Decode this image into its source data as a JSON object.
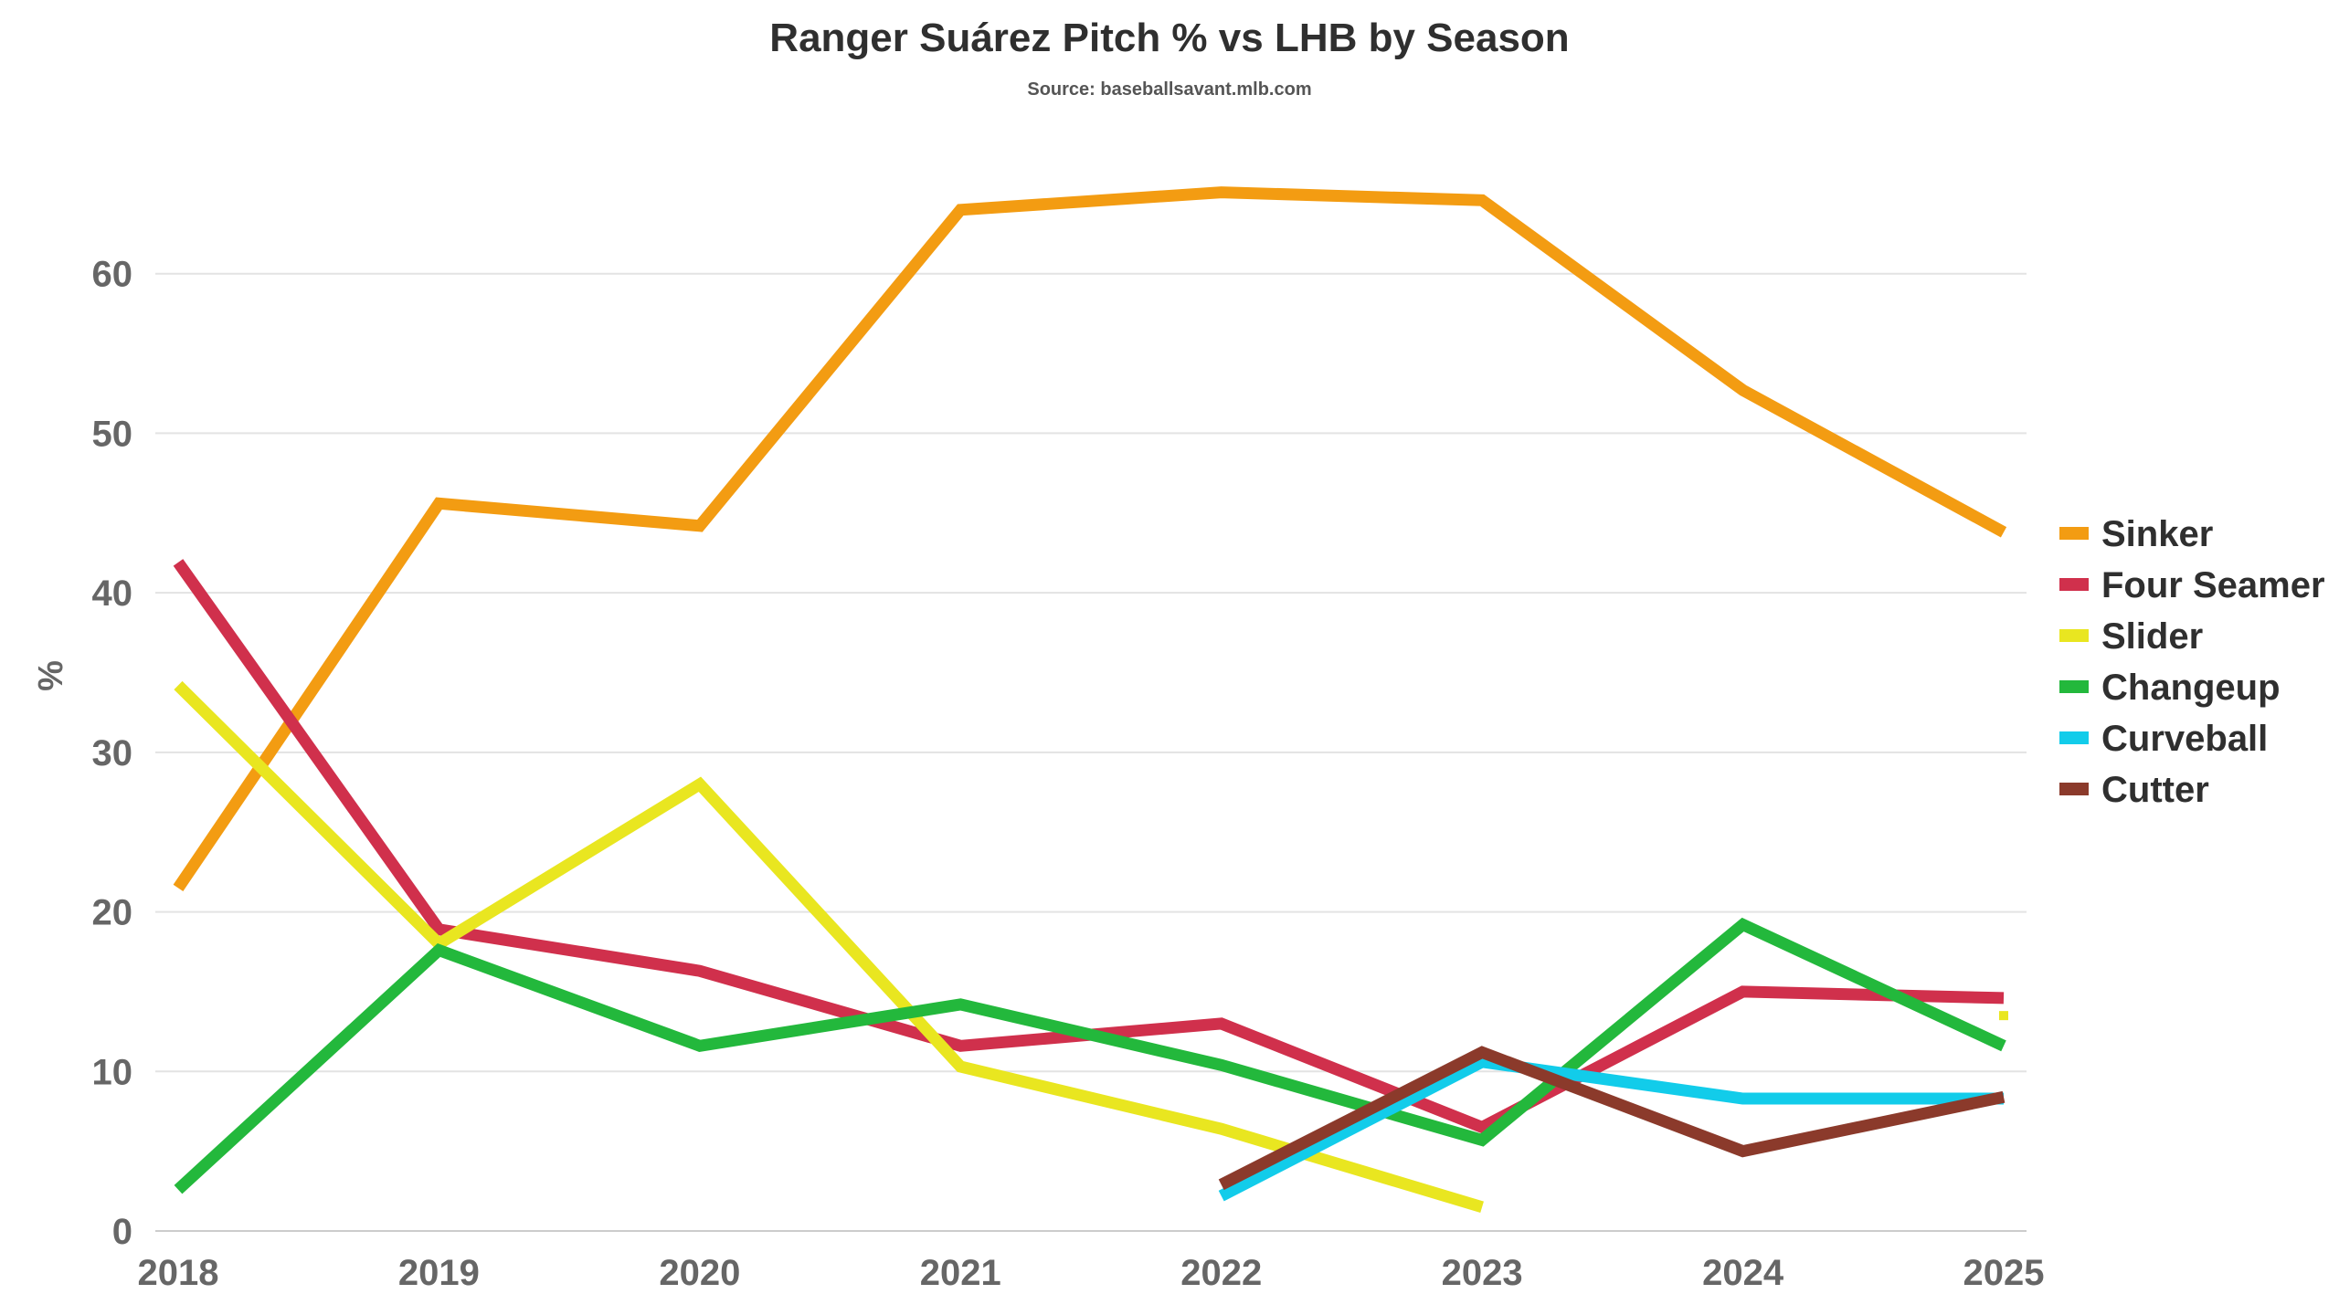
{
  "chart_data": {
    "type": "line",
    "title": "Ranger Suárez Pitch % vs LHB by Season",
    "subtitle": "Source: baseballsavant.mlb.com",
    "xlabel": "",
    "ylabel": "%",
    "x": [
      2018,
      2019,
      2020,
      2021,
      2022,
      2023,
      2024,
      2025
    ],
    "x_tick_labels": [
      "2018",
      "2019",
      "2020",
      "2021",
      "2022",
      "2023",
      "2024",
      "2025"
    ],
    "ylim": [
      0,
      70
    ],
    "y_ticks": [
      0,
      10,
      20,
      30,
      40,
      50,
      60
    ],
    "y_tick_labels": [
      "0",
      "10",
      "20",
      "30",
      "40",
      "50",
      "60"
    ],
    "grid": true,
    "legend_position": "right",
    "series": [
      {
        "name": "Sinker",
        "color": "#F39C12",
        "values": [
          21.5,
          45.6,
          44.2,
          64.0,
          65.1,
          64.6,
          52.7,
          43.8
        ]
      },
      {
        "name": "Four Seamer",
        "color": "#D0304C",
        "values": [
          41.9,
          18.9,
          16.3,
          11.6,
          13.0,
          6.5,
          15.0,
          14.6
        ]
      },
      {
        "name": "Slider",
        "color": "#E9E620",
        "values": [
          34.2,
          18.0,
          28.0,
          10.3,
          6.4,
          1.5,
          null,
          13.5
        ]
      },
      {
        "name": "Changeup",
        "color": "#23B83C",
        "values": [
          2.6,
          17.6,
          11.6,
          14.2,
          10.4,
          5.7,
          19.2,
          11.6
        ]
      },
      {
        "name": "Curveball",
        "color": "#12CCEA",
        "values": [
          null,
          null,
          null,
          null,
          2.2,
          10.6,
          8.3,
          8.3
        ]
      },
      {
        "name": "Cutter",
        "color": "#8B3A2B",
        "values": [
          null,
          null,
          null,
          null,
          2.9,
          11.2,
          5.0,
          8.4
        ]
      }
    ]
  }
}
